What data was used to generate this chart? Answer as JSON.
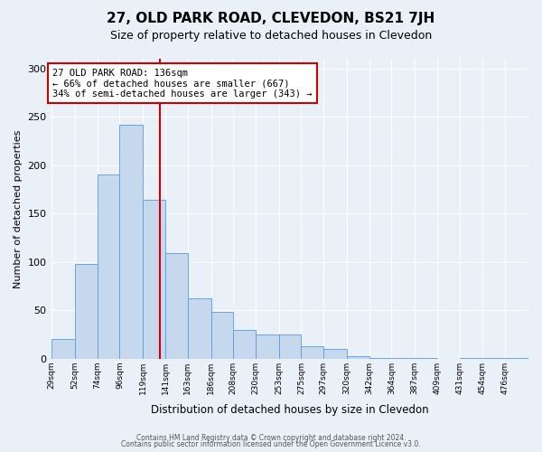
{
  "title": "27, OLD PARK ROAD, CLEVEDON, BS21 7JH",
  "subtitle": "Size of property relative to detached houses in Clevedon",
  "xlabel": "Distribution of detached houses by size in Clevedon",
  "ylabel": "Number of detached properties",
  "bar_color": "#c5d8ed",
  "bar_edge_color": "#5b9bd5",
  "bin_labels": [
    "29sqm",
    "52sqm",
    "74sqm",
    "96sqm",
    "119sqm",
    "141sqm",
    "163sqm",
    "186sqm",
    "208sqm",
    "230sqm",
    "253sqm",
    "275sqm",
    "297sqm",
    "320sqm",
    "342sqm",
    "364sqm",
    "387sqm",
    "409sqm",
    "431sqm",
    "454sqm",
    "476sqm"
  ],
  "bin_edges": [
    29,
    52,
    74,
    96,
    119,
    141,
    163,
    186,
    208,
    230,
    253,
    275,
    297,
    320,
    342,
    364,
    387,
    409,
    431,
    454,
    476,
    499
  ],
  "counts": [
    20,
    98,
    190,
    242,
    164,
    109,
    62,
    48,
    30,
    25,
    25,
    13,
    10,
    3,
    1,
    1,
    1,
    0,
    1,
    1,
    1
  ],
  "vline_x": 136,
  "vline_color": "#cc0000",
  "annotation_text": "27 OLD PARK ROAD: 136sqm\n← 66% of detached houses are smaller (667)\n34% of semi-detached houses are larger (343) →",
  "annotation_box_color": "#ffffff",
  "annotation_box_edge_color": "#cc0000",
  "ylim": [
    0,
    310
  ],
  "yticks": [
    0,
    50,
    100,
    150,
    200,
    250,
    300
  ],
  "footer_line1": "Contains HM Land Registry data © Crown copyright and database right 2024.",
  "footer_line2": "Contains public sector information licensed under the Open Government Licence v3.0.",
  "background_color": "#eaf0f8",
  "plot_bg_color": "#eaf0f8",
  "grid_color": "#ffffff",
  "title_fontsize": 11,
  "subtitle_fontsize": 9
}
